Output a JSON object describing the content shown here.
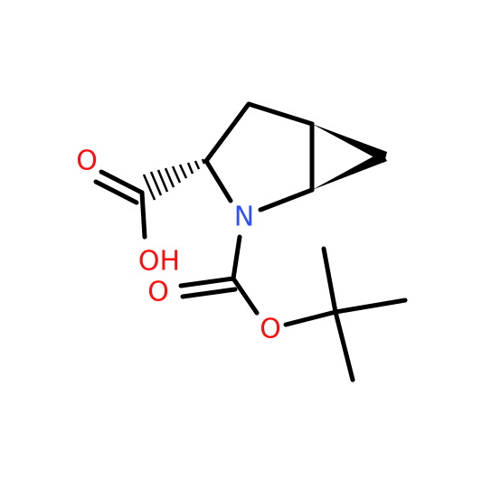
{
  "molecule": {
    "atoms": [
      {
        "label": "O"
      },
      {
        "label": "OH"
      },
      {
        "label": "N"
      },
      {
        "label": "O"
      },
      {
        "label": "O"
      }
    ]
  }
}
